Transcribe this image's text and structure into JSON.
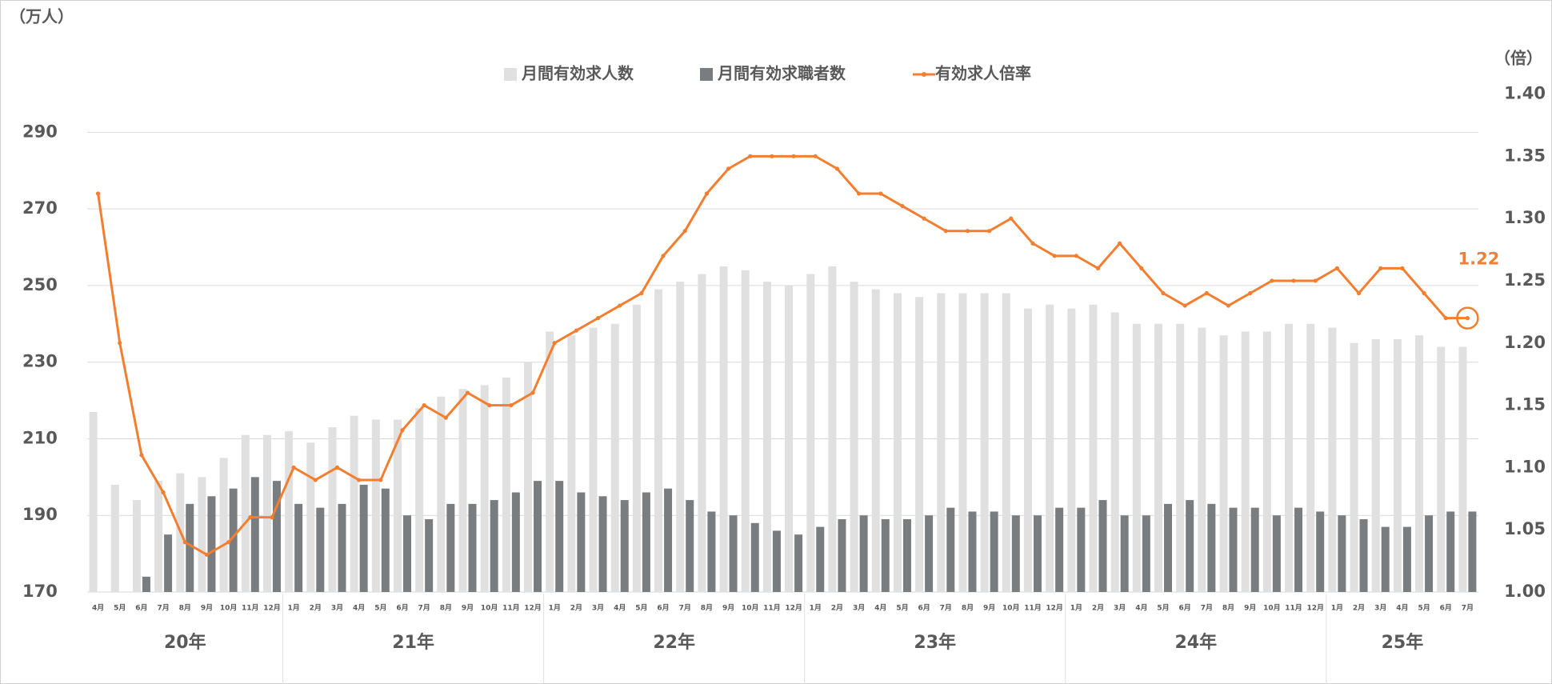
{
  "chart_data": {
    "type": "combo",
    "y_axis_label": "（万人）",
    "y2_axis_label": "（倍）",
    "categories": [
      "4月",
      "5月",
      "6月",
      "7月",
      "8月",
      "9月",
      "10月",
      "11月",
      "12月",
      "1月",
      "2月",
      "3月",
      "4月",
      "5月",
      "6月",
      "7月",
      "8月",
      "9月",
      "10月",
      "11月",
      "12月",
      "1月",
      "2月",
      "3月",
      "4月",
      "5月",
      "6月",
      "7月",
      "8月",
      "9月",
      "10月",
      "11月",
      "12月",
      "1月",
      "2月",
      "3月",
      "4月",
      "5月",
      "6月",
      "7月",
      "8月",
      "9月",
      "10月",
      "11月",
      "12月",
      "1月",
      "2月",
      "3月",
      "4月",
      "5月",
      "6月",
      "7月",
      "8月",
      "9月",
      "10月",
      "11月",
      "12月",
      "1月",
      "2月",
      "3月",
      "4月",
      "5月",
      "6月",
      "7月"
    ],
    "groups": [
      {
        "label": "20年",
        "span": 9
      },
      {
        "label": "21年",
        "span": 12
      },
      {
        "label": "22年",
        "span": 12
      },
      {
        "label": "23年",
        "span": 12
      },
      {
        "label": "24年",
        "span": 12
      },
      {
        "label": "25年",
        "span": 7
      }
    ],
    "series": [
      {
        "name": "月間有効求人数",
        "type": "bar",
        "color": "#e0e0e0",
        "values": [
          217,
          198,
          194,
          199,
          201,
          200,
          205,
          211,
          211,
          212,
          209,
          213,
          216,
          215,
          215,
          218,
          221,
          223,
          224,
          226,
          230,
          238,
          237,
          239,
          240,
          245,
          249,
          251,
          253,
          255,
          254,
          251,
          250,
          253,
          255,
          251,
          249,
          248,
          247,
          248,
          248,
          248,
          248,
          244,
          245,
          244,
          245,
          243,
          240,
          240,
          240,
          239,
          237,
          238,
          238,
          240,
          240,
          239,
          235,
          236,
          236,
          237,
          234,
          234
        ]
      },
      {
        "name": "月間有効求職者数",
        "type": "bar",
        "color": "#7a7d80",
        "values": [
          null,
          null,
          174,
          185,
          193,
          195,
          197,
          200,
          199,
          193,
          192,
          193,
          198,
          197,
          190,
          189,
          193,
          193,
          194,
          196,
          199,
          199,
          196,
          195,
          194,
          196,
          197,
          194,
          191,
          190,
          188,
          186,
          185,
          187,
          189,
          190,
          189,
          189,
          190,
          192,
          191,
          191,
          190,
          190,
          192,
          192,
          194,
          190,
          190,
          193,
          194,
          193,
          192,
          192,
          190,
          192,
          191,
          190,
          189,
          187,
          187,
          190,
          191,
          191
        ]
      },
      {
        "name": "有効求人倍率",
        "type": "line",
        "axis": "y2",
        "color": "#f47e2f",
        "data_label": "last",
        "values": [
          1.32,
          1.2,
          1.11,
          1.08,
          1.04,
          1.03,
          1.04,
          1.06,
          1.06,
          1.1,
          1.09,
          1.1,
          1.09,
          1.09,
          1.13,
          1.15,
          1.14,
          1.16,
          1.15,
          1.15,
          1.16,
          1.2,
          1.21,
          1.22,
          1.23,
          1.24,
          1.27,
          1.29,
          1.32,
          1.34,
          1.35,
          1.35,
          1.35,
          1.35,
          1.34,
          1.32,
          1.32,
          1.31,
          1.3,
          1.29,
          1.29,
          1.29,
          1.3,
          1.28,
          1.27,
          1.27,
          1.26,
          1.28,
          1.26,
          1.24,
          1.23,
          1.24,
          1.23,
          1.24,
          1.25,
          1.25,
          1.25,
          1.26,
          1.24,
          1.26,
          1.26,
          1.24,
          1.22,
          1.22
        ]
      }
    ],
    "ylim": [
      170,
      300
    ],
    "yticks": [
      170,
      190,
      210,
      230,
      250,
      270,
      290
    ],
    "y2lim": [
      1.0,
      1.4
    ],
    "y2ticks": [
      {
        "value": 1.0,
        "label": "1.00"
      },
      {
        "value": 1.05,
        "label": "1.05"
      },
      {
        "value": 1.1,
        "label": "1.10"
      },
      {
        "value": 1.15,
        "label": "1.15"
      },
      {
        "value": 1.2,
        "label": "1.20"
      },
      {
        "value": 1.25,
        "label": "1.25"
      },
      {
        "value": 1.3,
        "label": "1.30"
      },
      {
        "value": 1.35,
        "label": "1.35"
      },
      {
        "value": 1.4,
        "label": "1.40"
      }
    ],
    "grid": true,
    "legend": "top"
  }
}
